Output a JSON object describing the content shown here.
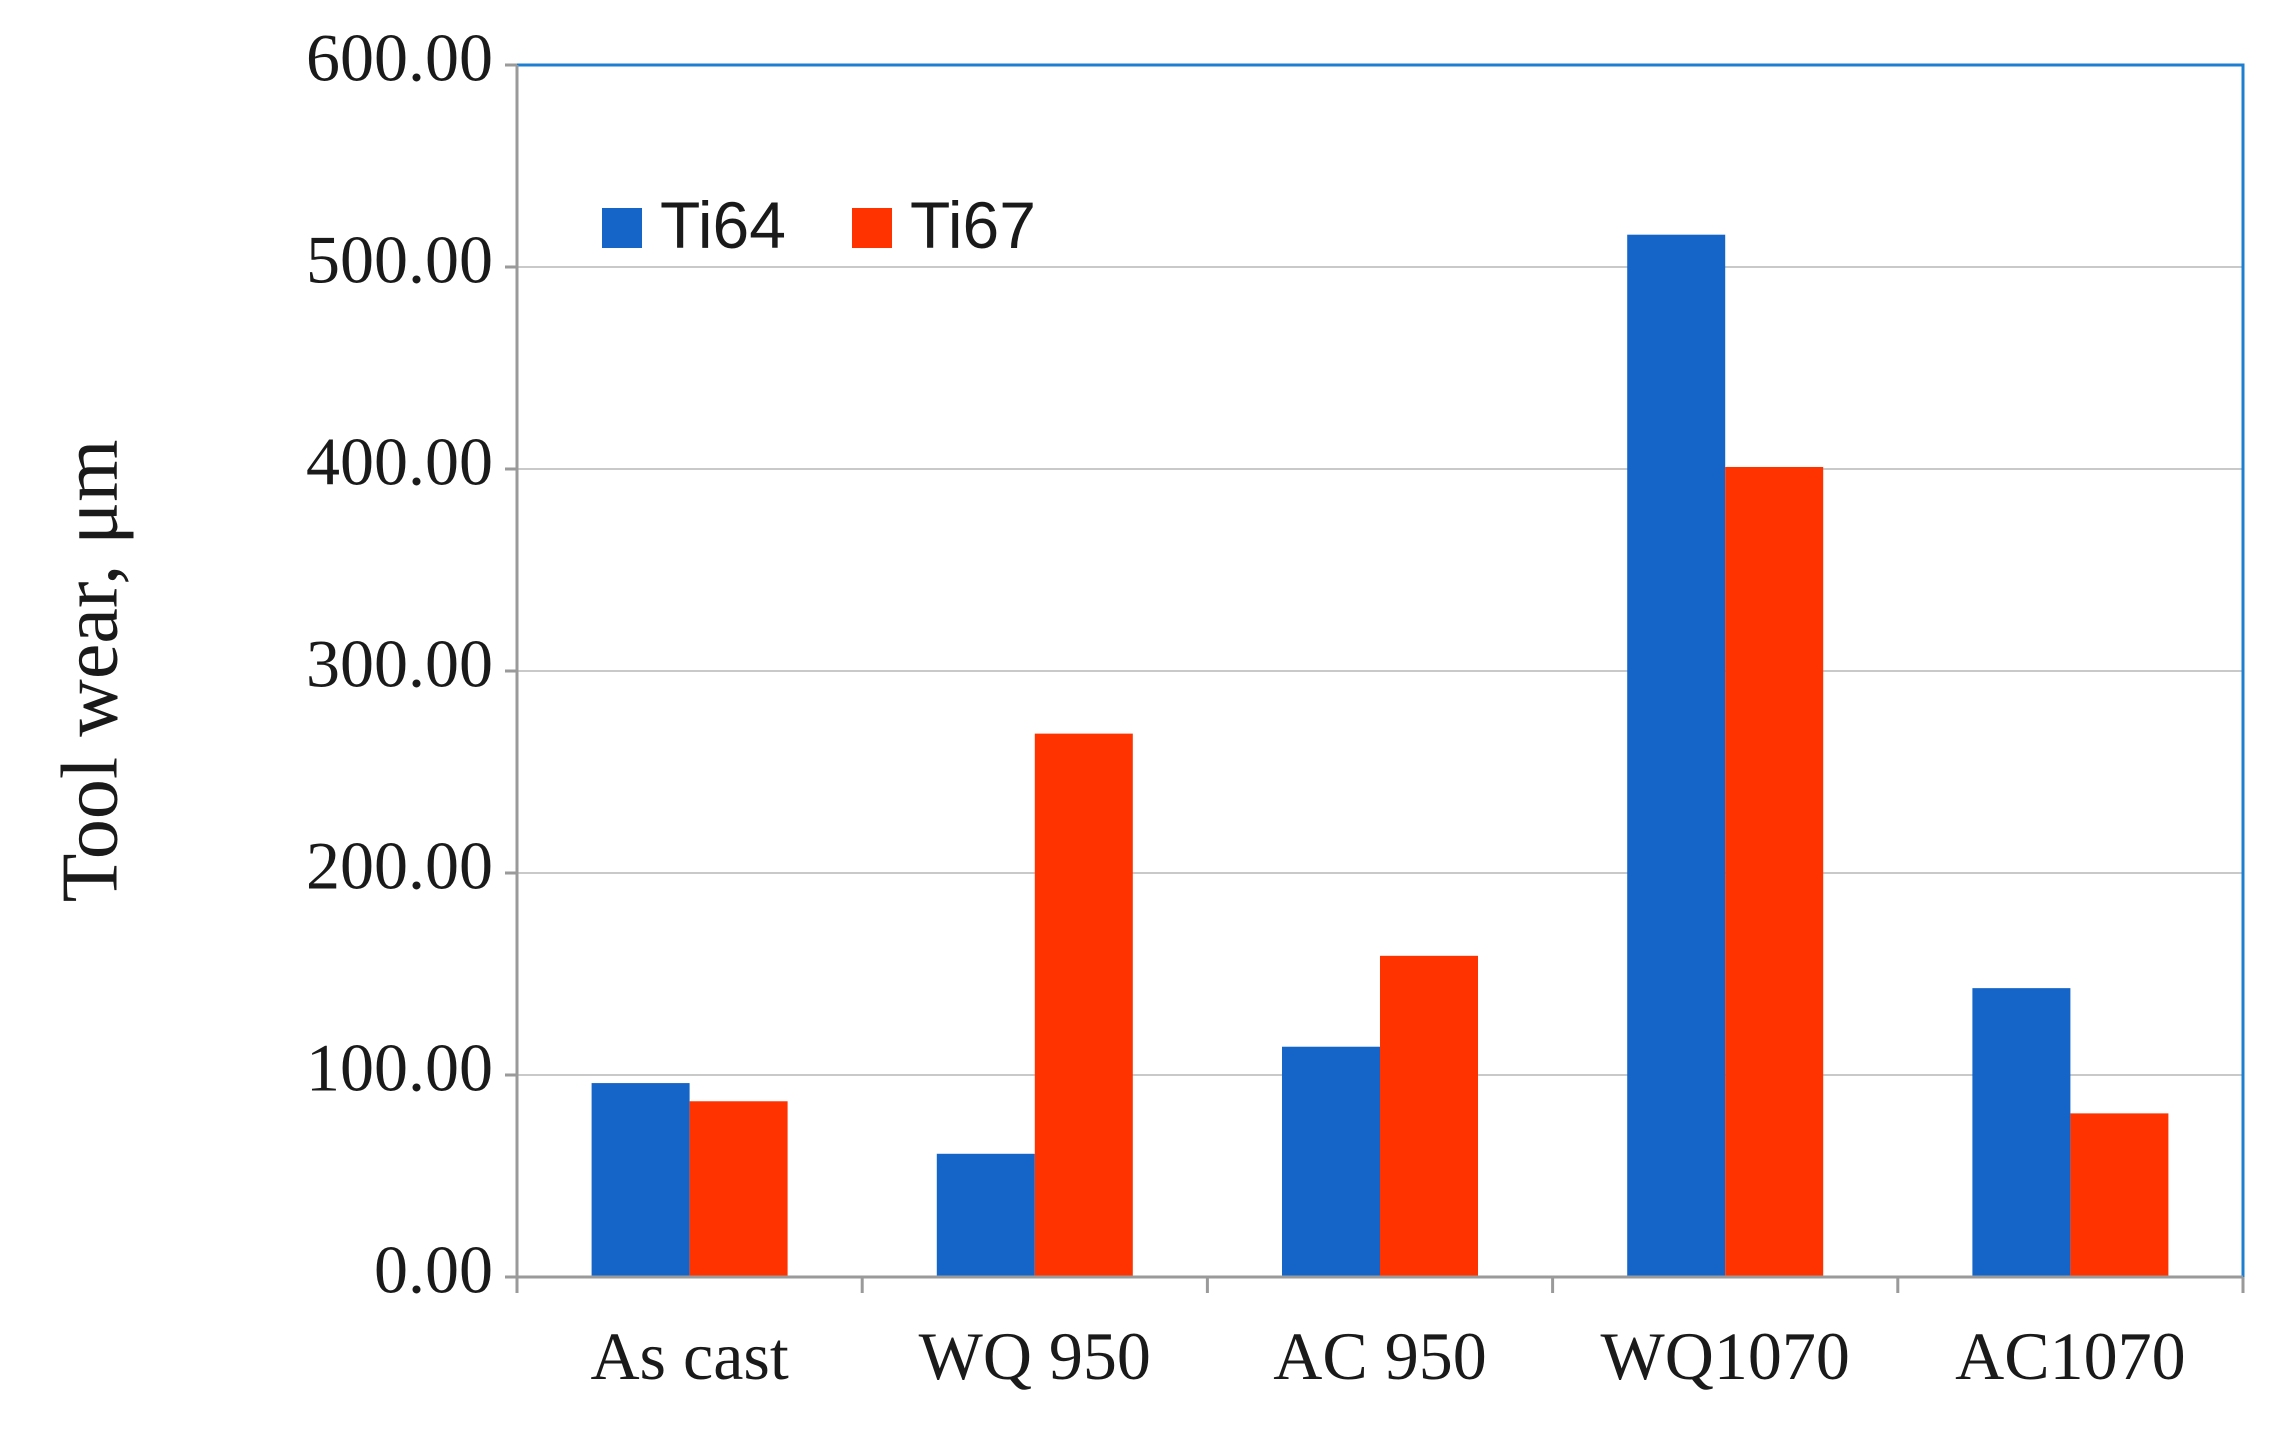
{
  "chart_data": {
    "type": "bar",
    "title": "",
    "xlabel": "",
    "ylabel": "Tool wear, μm",
    "ylim": [
      0,
      600
    ],
    "yticks": [
      "0.00",
      "100.00",
      "200.00",
      "300.00",
      "400.00",
      "500.00",
      "600.00"
    ],
    "categories": [
      "As cast",
      "WQ 950",
      "AC 950",
      "WQ1070",
      "AC1070"
    ],
    "series": [
      {
        "name": "Ti64",
        "color": "#1565C8",
        "values": [
          96,
          61,
          114,
          516,
          143
        ]
      },
      {
        "name": "Ti67",
        "color": "#FF3300",
        "values": [
          87,
          269,
          159,
          401,
          81
        ]
      }
    ],
    "grid": true,
    "legend_position": "top-left"
  }
}
